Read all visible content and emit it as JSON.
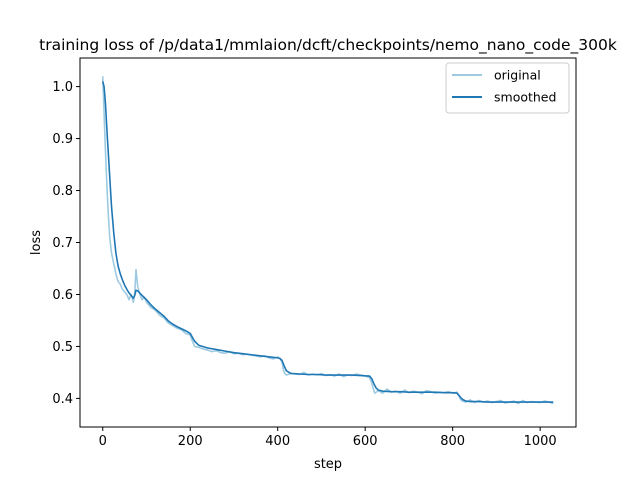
{
  "chart_data": {
    "type": "line",
    "title": "training loss of /p/data1/mmlaion/dcft/checkpoints/nemo_nano_code_300k",
    "xlabel": "step",
    "ylabel": "loss",
    "xlim": [
      -52,
      1082
    ],
    "ylim": [
      0.345,
      1.055
    ],
    "xticks": [
      0,
      200,
      400,
      600,
      800,
      1000
    ],
    "yticks": [
      0.4,
      0.5,
      0.6,
      0.7,
      0.8,
      0.9,
      1.0
    ],
    "xtick_labels": [
      "0",
      "200",
      "400",
      "600",
      "800",
      "1000"
    ],
    "ytick_labels": [
      "0.4",
      "0.5",
      "0.6",
      "0.7",
      "0.8",
      "0.9",
      "1.0"
    ],
    "grid": false,
    "legend_position": "top-right",
    "series": [
      {
        "name": "original",
        "color": "#9ecae1",
        "x": [
          0,
          3,
          6,
          8,
          10,
          13,
          16,
          20,
          25,
          30,
          35,
          40,
          45,
          50,
          55,
          60,
          65,
          70,
          73,
          76,
          80,
          85,
          90,
          95,
          100,
          110,
          120,
          130,
          140,
          150,
          160,
          170,
          180,
          190,
          200,
          205,
          210,
          220,
          230,
          240,
          250,
          260,
          270,
          280,
          290,
          300,
          310,
          320,
          330,
          340,
          350,
          360,
          370,
          380,
          390,
          400,
          405,
          410,
          413,
          416,
          420,
          430,
          440,
          450,
          460,
          470,
          480,
          490,
          500,
          510,
          520,
          530,
          540,
          550,
          560,
          570,
          580,
          590,
          600,
          610,
          615,
          618,
          622,
          630,
          640,
          650,
          660,
          670,
          680,
          690,
          700,
          710,
          720,
          730,
          740,
          750,
          760,
          770,
          780,
          790,
          800,
          810,
          815,
          818,
          822,
          830,
          840,
          850,
          860,
          870,
          880,
          890,
          900,
          910,
          920,
          930,
          940,
          950,
          960,
          970,
          980,
          990,
          1000,
          1010,
          1020,
          1030
        ],
        "y": [
          1.02,
          0.95,
          0.88,
          0.84,
          0.8,
          0.75,
          0.71,
          0.68,
          0.66,
          0.64,
          0.625,
          0.62,
          0.61,
          0.605,
          0.6,
          0.59,
          0.6,
          0.585,
          0.6,
          0.648,
          0.615,
          0.6,
          0.59,
          0.595,
          0.585,
          0.575,
          0.57,
          0.56,
          0.555,
          0.545,
          0.54,
          0.535,
          0.532,
          0.525,
          0.522,
          0.51,
          0.5,
          0.498,
          0.495,
          0.493,
          0.49,
          0.492,
          0.488,
          0.487,
          0.49,
          0.486,
          0.487,
          0.484,
          0.485,
          0.483,
          0.482,
          0.48,
          0.482,
          0.478,
          0.476,
          0.48,
          0.476,
          0.47,
          0.455,
          0.448,
          0.445,
          0.448,
          0.447,
          0.446,
          0.45,
          0.445,
          0.447,
          0.445,
          0.448,
          0.444,
          0.446,
          0.443,
          0.447,
          0.442,
          0.445,
          0.444,
          0.447,
          0.445,
          0.443,
          0.44,
          0.43,
          0.42,
          0.41,
          0.415,
          0.41,
          0.418,
          0.412,
          0.414,
          0.41,
          0.416,
          0.411,
          0.414,
          0.412,
          0.409,
          0.415,
          0.413,
          0.41,
          0.412,
          0.411,
          0.413,
          0.41,
          0.412,
          0.405,
          0.398,
          0.395,
          0.393,
          0.397,
          0.392,
          0.396,
          0.393,
          0.395,
          0.392,
          0.394,
          0.396,
          0.391,
          0.393,
          0.395,
          0.39,
          0.396,
          0.392,
          0.394,
          0.393,
          0.392,
          0.395,
          0.393,
          0.39
        ]
      },
      {
        "name": "smoothed",
        "color": "#1f77b4",
        "x": [
          0,
          3,
          6,
          10,
          15,
          20,
          25,
          30,
          35,
          40,
          45,
          50,
          55,
          60,
          65,
          70,
          73,
          76,
          80,
          90,
          100,
          110,
          120,
          130,
          140,
          150,
          160,
          170,
          180,
          190,
          200,
          210,
          220,
          240,
          260,
          280,
          300,
          320,
          340,
          360,
          380,
          400,
          405,
          410,
          415,
          420,
          430,
          450,
          470,
          490,
          510,
          530,
          550,
          570,
          590,
          610,
          615,
          620,
          625,
          630,
          640,
          660,
          680,
          700,
          720,
          740,
          760,
          780,
          800,
          810,
          815,
          820,
          825,
          830,
          840,
          860,
          880,
          900,
          920,
          940,
          960,
          980,
          1000,
          1020,
          1030
        ],
        "y": [
          1.01,
          1.0,
          0.97,
          0.91,
          0.84,
          0.77,
          0.72,
          0.68,
          0.655,
          0.64,
          0.628,
          0.618,
          0.61,
          0.603,
          0.598,
          0.593,
          0.598,
          0.608,
          0.607,
          0.598,
          0.59,
          0.58,
          0.572,
          0.565,
          0.558,
          0.549,
          0.543,
          0.538,
          0.534,
          0.53,
          0.525,
          0.51,
          0.502,
          0.497,
          0.494,
          0.491,
          0.488,
          0.486,
          0.484,
          0.482,
          0.48,
          0.478,
          0.477,
          0.473,
          0.462,
          0.453,
          0.448,
          0.447,
          0.446,
          0.446,
          0.445,
          0.445,
          0.445,
          0.445,
          0.444,
          0.443,
          0.438,
          0.428,
          0.42,
          0.416,
          0.414,
          0.413,
          0.413,
          0.412,
          0.412,
          0.412,
          0.412,
          0.411,
          0.411,
          0.41,
          0.405,
          0.4,
          0.397,
          0.395,
          0.394,
          0.394,
          0.393,
          0.393,
          0.393,
          0.393,
          0.393,
          0.393,
          0.393,
          0.393,
          0.393
        ]
      }
    ]
  }
}
